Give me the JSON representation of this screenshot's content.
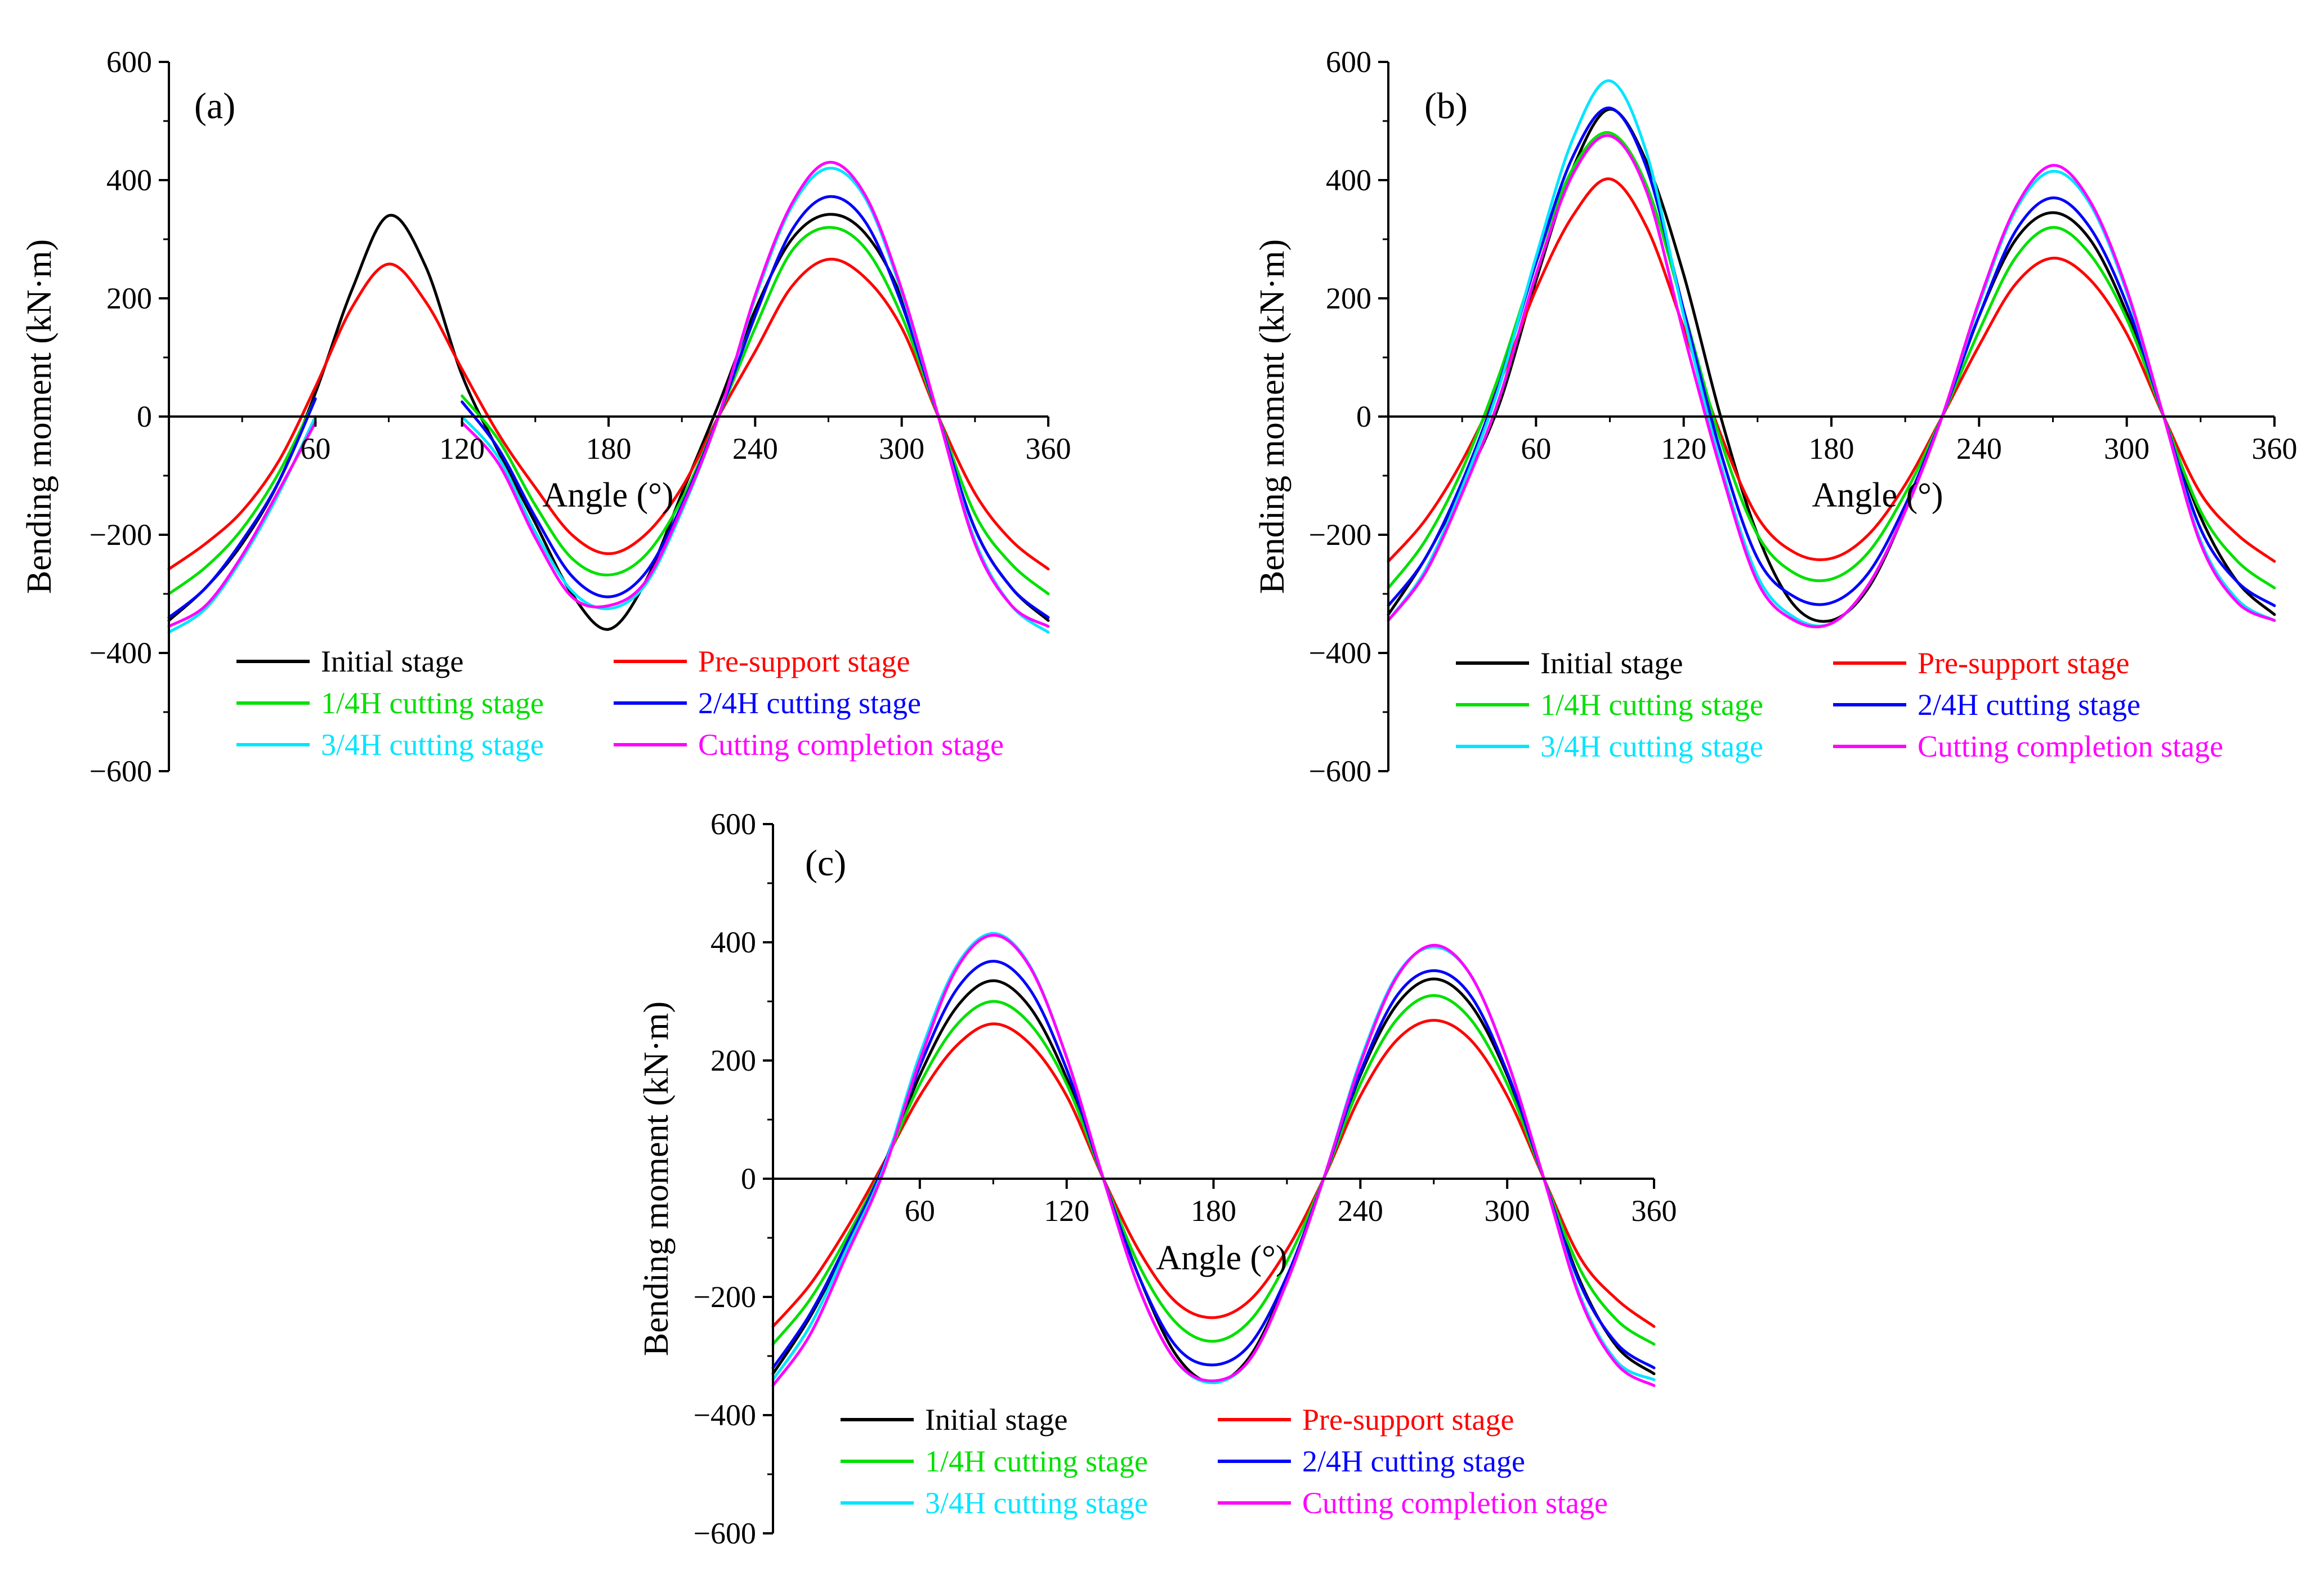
{
  "chart_data": [
    {
      "type": "line",
      "panel_label": "(a)",
      "xlabel": "Angle (°)",
      "ylabel": "Bending moment (kN·m)",
      "xlim": [
        0,
        360
      ],
      "ylim": [
        -600,
        600
      ],
      "xticks": [
        60,
        120,
        180,
        240,
        300,
        360
      ],
      "yticks": [
        -600,
        -400,
        -200,
        0,
        200,
        400,
        600
      ],
      "gap": [
        63,
        118
      ],
      "series": [
        {
          "name": "Initial stage",
          "color": "#000000",
          "x": [
            0,
            15,
            30,
            45,
            60,
            75,
            90,
            105,
            120,
            135,
            150,
            165,
            180,
            195,
            210,
            225,
            240,
            255,
            270,
            285,
            300,
            315,
            330,
            345,
            360
          ],
          "y": [
            -345,
            -290,
            -215,
            -110,
            40,
            215,
            340,
            255,
            70,
            -60,
            -180,
            -300,
            -360,
            -280,
            -130,
            20,
            180,
            300,
            342,
            310,
            200,
            0,
            -190,
            -290,
            -345
          ]
        },
        {
          "name": "Pre-support stage",
          "color": "#ff0000",
          "x": [
            0,
            15,
            30,
            45,
            60,
            75,
            90,
            105,
            120,
            135,
            150,
            165,
            180,
            195,
            210,
            225,
            240,
            255,
            270,
            285,
            300,
            315,
            330,
            345,
            360
          ],
          "y": [
            -258,
            -215,
            -160,
            -75,
            50,
            185,
            258,
            195,
            80,
            -30,
            -120,
            -200,
            -232,
            -200,
            -120,
            0,
            110,
            220,
            266,
            235,
            150,
            0,
            -130,
            -210,
            -258
          ]
        },
        {
          "name": "1/4H cutting stage",
          "color": "#00e000",
          "x": [
            0,
            15,
            30,
            45,
            60,
            120,
            135,
            150,
            165,
            180,
            195,
            210,
            225,
            240,
            255,
            270,
            285,
            300,
            315,
            330,
            345,
            360
          ],
          "y": [
            -300,
            -255,
            -190,
            -95,
            30,
            35,
            -40,
            -150,
            -240,
            -268,
            -235,
            -140,
            0,
            150,
            280,
            320,
            285,
            170,
            0,
            -165,
            -250,
            -300
          ]
        },
        {
          "name": "2/4H cutting stage",
          "color": "#0000ff",
          "x": [
            0,
            15,
            30,
            45,
            60,
            120,
            135,
            150,
            165,
            180,
            195,
            210,
            225,
            240,
            255,
            270,
            285,
            300,
            315,
            330,
            345,
            360
          ],
          "y": [
            -340,
            -290,
            -210,
            -110,
            30,
            25,
            -55,
            -170,
            -270,
            -305,
            -265,
            -150,
            0,
            170,
            315,
            372,
            330,
            190,
            0,
            -190,
            -290,
            -340
          ]
        },
        {
          "name": "3/4H cutting stage",
          "color": "#00e5ff",
          "x": [
            0,
            15,
            30,
            45,
            60,
            120,
            135,
            150,
            165,
            180,
            195,
            210,
            225,
            240,
            255,
            270,
            285,
            300,
            315,
            330,
            345,
            360
          ],
          "y": [
            -365,
            -325,
            -240,
            -130,
            0,
            0,
            -70,
            -195,
            -295,
            -325,
            -285,
            -160,
            0,
            200,
            355,
            420,
            370,
            210,
            0,
            -210,
            -320,
            -365
          ]
        },
        {
          "name": "Cutting completion stage",
          "color": "#ff00ff",
          "x": [
            0,
            15,
            30,
            45,
            60,
            120,
            135,
            150,
            165,
            180,
            195,
            210,
            225,
            240,
            255,
            270,
            285,
            300,
            315,
            330,
            345,
            360
          ],
          "y": [
            -355,
            -320,
            -235,
            -125,
            -10,
            -10,
            -80,
            -205,
            -305,
            -320,
            -280,
            -155,
            0,
            205,
            360,
            430,
            375,
            215,
            0,
            -215,
            -320,
            -355
          ]
        }
      ]
    },
    {
      "type": "line",
      "panel_label": "(b)",
      "xlabel": "Angle (°)",
      "ylabel": "Bending moment (kN·m)",
      "xlim": [
        0,
        360
      ],
      "ylim": [
        -600,
        600
      ],
      "xticks": [
        60,
        120,
        180,
        240,
        300,
        360
      ],
      "yticks": [
        -600,
        -400,
        -200,
        0,
        200,
        400,
        600
      ],
      "series": [
        {
          "name": "Initial stage",
          "color": "#000000",
          "x": [
            0,
            15,
            30,
            45,
            60,
            75,
            90,
            105,
            120,
            135,
            150,
            165,
            180,
            195,
            210,
            225,
            240,
            255,
            270,
            285,
            300,
            315,
            330,
            345,
            360
          ],
          "y": [
            -335,
            -240,
            -120,
            20,
            230,
            420,
            520,
            430,
            240,
            0,
            -200,
            -320,
            -345,
            -290,
            -160,
            0,
            170,
            300,
            345,
            300,
            175,
            0,
            -170,
            -280,
            -335
          ]
        },
        {
          "name": "Pre-support stage",
          "color": "#ff0000",
          "x": [
            0,
            15,
            30,
            45,
            60,
            75,
            90,
            105,
            120,
            135,
            150,
            165,
            180,
            195,
            210,
            225,
            240,
            255,
            270,
            285,
            300,
            315,
            330,
            345,
            360
          ],
          "y": [
            -245,
            -175,
            -75,
            55,
            215,
            340,
            402,
            320,
            150,
            -30,
            -170,
            -230,
            -240,
            -200,
            -115,
            0,
            120,
            225,
            268,
            232,
            140,
            0,
            -130,
            -200,
            -245
          ]
        },
        {
          "name": "1/4H cutting stage",
          "color": "#00e000",
          "x": [
            0,
            15,
            30,
            45,
            60,
            75,
            90,
            105,
            120,
            135,
            150,
            165,
            180,
            195,
            210,
            225,
            240,
            255,
            270,
            285,
            300,
            315,
            330,
            345,
            360
          ],
          "y": [
            -290,
            -210,
            -90,
            70,
            260,
            420,
            480,
            390,
            180,
            -40,
            -200,
            -265,
            -275,
            -230,
            -130,
            0,
            145,
            270,
            320,
            275,
            165,
            0,
            -160,
            -245,
            -290
          ]
        },
        {
          "name": "2/4H cutting stage",
          "color": "#0000ff",
          "x": [
            0,
            15,
            30,
            45,
            60,
            75,
            90,
            105,
            120,
            135,
            150,
            165,
            180,
            195,
            210,
            225,
            240,
            255,
            270,
            285,
            300,
            315,
            330,
            345,
            360
          ],
          "y": [
            -320,
            -240,
            -110,
            55,
            260,
            440,
            522,
            420,
            180,
            -60,
            -240,
            -305,
            -315,
            -265,
            -150,
            0,
            170,
            315,
            370,
            320,
            190,
            0,
            -190,
            -280,
            -320
          ]
        },
        {
          "name": "3/4H cutting stage",
          "color": "#00e5ff",
          "x": [
            0,
            15,
            30,
            45,
            60,
            75,
            90,
            105,
            120,
            135,
            150,
            165,
            180,
            195,
            210,
            225,
            240,
            255,
            270,
            285,
            300,
            315,
            330,
            345,
            360
          ],
          "y": [
            -345,
            -260,
            -120,
            50,
            270,
            470,
            568,
            445,
            170,
            -80,
            -270,
            -340,
            -350,
            -285,
            -160,
            0,
            190,
            350,
            415,
            360,
            210,
            0,
            -210,
            -310,
            -345
          ]
        },
        {
          "name": "Cutting completion stage",
          "color": "#ff00ff",
          "x": [
            0,
            15,
            30,
            45,
            60,
            75,
            90,
            105,
            120,
            135,
            150,
            165,
            180,
            195,
            210,
            225,
            240,
            255,
            270,
            285,
            300,
            315,
            330,
            345,
            360
          ],
          "y": [
            -345,
            -265,
            -130,
            30,
            240,
            410,
            475,
            380,
            140,
            -90,
            -280,
            -345,
            -350,
            -285,
            -160,
            0,
            195,
            355,
            425,
            365,
            215,
            0,
            -215,
            -315,
            -345
          ]
        }
      ]
    },
    {
      "type": "line",
      "panel_label": "(c)",
      "xlabel": "Angle (°)",
      "ylabel": "Bending moment (kN·m)",
      "xlim": [
        0,
        360
      ],
      "ylim": [
        -600,
        600
      ],
      "xticks": [
        60,
        120,
        180,
        240,
        300,
        360
      ],
      "yticks": [
        -600,
        -400,
        -200,
        0,
        200,
        400,
        600
      ],
      "series": [
        {
          "name": "Initial stage",
          "color": "#000000",
          "x": [
            0,
            15,
            30,
            45,
            60,
            75,
            90,
            105,
            120,
            135,
            150,
            165,
            180,
            195,
            210,
            225,
            240,
            255,
            270,
            285,
            300,
            315,
            330,
            345,
            360
          ],
          "y": [
            -330,
            -235,
            -115,
            20,
            175,
            290,
            335,
            290,
            170,
            0,
            -170,
            -300,
            -345,
            -300,
            -170,
            0,
            175,
            295,
            338,
            295,
            175,
            0,
            -175,
            -285,
            -330
          ]
        },
        {
          "name": "Pre-support stage",
          "color": "#ff0000",
          "x": [
            0,
            15,
            30,
            45,
            60,
            75,
            90,
            105,
            120,
            135,
            150,
            165,
            180,
            195,
            210,
            225,
            240,
            255,
            270,
            285,
            300,
            315,
            330,
            345,
            360
          ],
          "y": [
            -250,
            -180,
            -85,
            25,
            140,
            225,
            262,
            228,
            140,
            0,
            -125,
            -210,
            -235,
            -205,
            -120,
            0,
            140,
            235,
            268,
            235,
            140,
            0,
            -135,
            -205,
            -250
          ]
        },
        {
          "name": "1/4H cutting stage",
          "color": "#00e000",
          "x": [
            0,
            15,
            30,
            45,
            60,
            75,
            90,
            105,
            120,
            135,
            150,
            165,
            180,
            195,
            210,
            225,
            240,
            255,
            270,
            285,
            300,
            315,
            330,
            345,
            360
          ],
          "y": [
            -280,
            -205,
            -100,
            20,
            160,
            260,
            300,
            262,
            160,
            0,
            -150,
            -245,
            -275,
            -240,
            -140,
            0,
            160,
            270,
            310,
            270,
            160,
            0,
            -155,
            -240,
            -280
          ]
        },
        {
          "name": "2/4H cutting stage",
          "color": "#0000ff",
          "x": [
            0,
            15,
            30,
            45,
            60,
            75,
            90,
            105,
            120,
            135,
            150,
            165,
            180,
            195,
            210,
            225,
            240,
            255,
            270,
            285,
            300,
            315,
            330,
            345,
            360
          ],
          "y": [
            -320,
            -230,
            -110,
            20,
            190,
            320,
            368,
            320,
            185,
            0,
            -170,
            -285,
            -315,
            -280,
            -165,
            0,
            180,
            310,
            352,
            310,
            180,
            0,
            -180,
            -280,
            -320
          ]
        },
        {
          "name": "3/4H cutting stage",
          "color": "#00e5ff",
          "x": [
            0,
            15,
            30,
            45,
            60,
            75,
            90,
            105,
            120,
            135,
            150,
            165,
            180,
            195,
            210,
            225,
            240,
            255,
            270,
            285,
            300,
            315,
            330,
            345,
            360
          ],
          "y": [
            -340,
            -250,
            -120,
            15,
            210,
            360,
            415,
            360,
            205,
            0,
            -190,
            -310,
            -345,
            -305,
            -175,
            0,
            200,
            345,
            392,
            345,
            200,
            0,
            -200,
            -310,
            -340
          ]
        },
        {
          "name": "Cutting completion stage",
          "color": "#ff00ff",
          "x": [
            0,
            15,
            30,
            45,
            60,
            75,
            90,
            105,
            120,
            135,
            150,
            165,
            180,
            195,
            210,
            225,
            240,
            255,
            270,
            285,
            300,
            315,
            330,
            345,
            360
          ],
          "y": [
            -350,
            -265,
            -130,
            10,
            200,
            355,
            412,
            358,
            205,
            0,
            -190,
            -310,
            -342,
            -305,
            -175,
            0,
            195,
            342,
            395,
            345,
            200,
            0,
            -205,
            -315,
            -350
          ]
        }
      ]
    }
  ]
}
